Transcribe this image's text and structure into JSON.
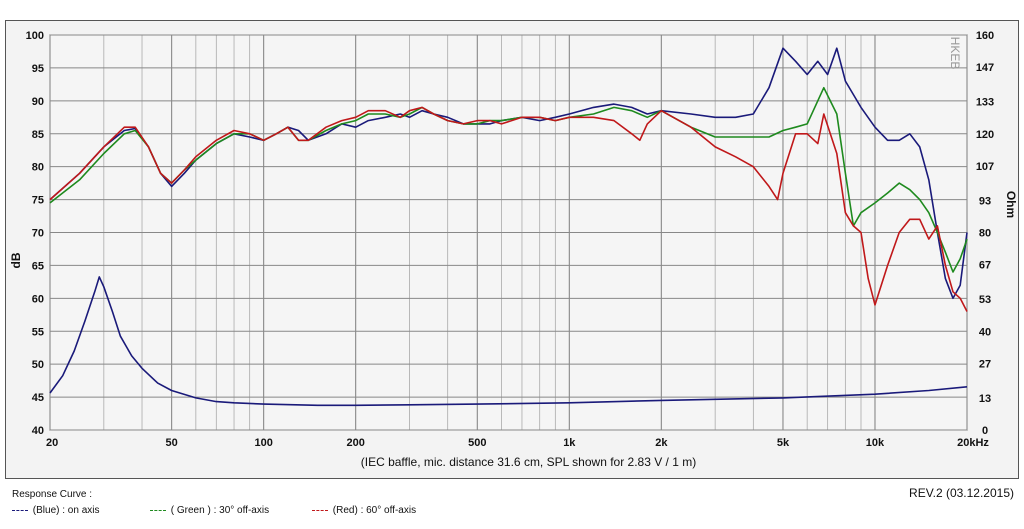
{
  "chart_data": {
    "type": "line",
    "note": "(IEC baffle, mic. distance 31.6 cm, SPL shown for 2.83 V / 1 m)",
    "ylabel": "dB",
    "ylabel_right": "Ohm",
    "x_ticks": [
      "20",
      "50",
      "100",
      "200",
      "500",
      "1k",
      "2k",
      "5k",
      "10k",
      "20kHz"
    ],
    "x_tick_values": [
      20,
      50,
      100,
      200,
      500,
      1000,
      2000,
      5000,
      10000,
      20000
    ],
    "xlim": [
      20,
      20000
    ],
    "xscale": "log",
    "ylim": [
      40,
      100
    ],
    "y_ticks": [
      "40",
      "45",
      "50",
      "55",
      "60",
      "65",
      "70",
      "75",
      "80",
      "85",
      "90",
      "95",
      "100"
    ],
    "y_tick_values": [
      40,
      45,
      50,
      55,
      60,
      65,
      70,
      75,
      80,
      85,
      90,
      95,
      100
    ],
    "y2lim": [
      0,
      160
    ],
    "y2_ticks": [
      "0",
      "13",
      "27",
      "40",
      "53",
      "67",
      "80",
      "93",
      "107",
      "120",
      "133",
      "147",
      "160"
    ],
    "y2_tick_values": [
      0,
      13,
      27,
      40,
      53,
      67,
      80,
      93,
      107,
      120,
      133,
      147,
      160
    ],
    "grid": true,
    "series": [
      {
        "name": "(Blue) : on axis",
        "color": "#1a1a7a",
        "x": [
          20,
          25,
          30,
          35,
          38,
          42,
          46,
          50,
          55,
          60,
          70,
          80,
          90,
          100,
          110,
          120,
          130,
          140,
          160,
          180,
          200,
          220,
          250,
          280,
          300,
          330,
          360,
          400,
          450,
          500,
          550,
          600,
          700,
          800,
          900,
          1000,
          1200,
          1400,
          1600,
          1800,
          2000,
          2500,
          3000,
          3500,
          4000,
          4500,
          5000,
          5500,
          6000,
          6500,
          7000,
          7500,
          8000,
          9000,
          10000,
          11000,
          12000,
          13000,
          14000,
          15000,
          16000,
          17000,
          18000,
          19000,
          20000
        ],
        "y": [
          75,
          79,
          83,
          85.5,
          85.8,
          83,
          79,
          77,
          79,
          81,
          83.5,
          85,
          84.5,
          84,
          85,
          86,
          85.5,
          84,
          85,
          86.5,
          86,
          87,
          87.5,
          88,
          87.5,
          88.5,
          88,
          87.5,
          86.5,
          86.5,
          86.5,
          87,
          87.5,
          87,
          87.5,
          88,
          89,
          89.5,
          89,
          88,
          88.5,
          88,
          87.5,
          87.5,
          88,
          92,
          98,
          96,
          94,
          96,
          94,
          98,
          93,
          89,
          86,
          84,
          84,
          85,
          83,
          78,
          70,
          63,
          60,
          62,
          70
        ]
      },
      {
        "name": "( Green ) : 30° off-axis",
        "color": "#1e8a1e",
        "x": [
          20,
          25,
          30,
          35,
          38,
          42,
          46,
          50,
          55,
          60,
          70,
          80,
          90,
          100,
          110,
          120,
          130,
          140,
          160,
          180,
          200,
          220,
          250,
          280,
          300,
          330,
          360,
          400,
          450,
          500,
          550,
          600,
          700,
          800,
          900,
          1000,
          1200,
          1400,
          1600,
          1800,
          2000,
          2500,
          3000,
          3500,
          4000,
          4500,
          5000,
          5500,
          6000,
          6500,
          6800,
          7500,
          8000,
          8500,
          9000,
          10000,
          11000,
          12000,
          13000,
          14000,
          15000,
          16000,
          17000,
          18000,
          19000,
          20000
        ],
        "y": [
          74.5,
          78,
          82,
          85,
          85.5,
          83,
          79,
          77.5,
          79.5,
          81,
          83.5,
          85,
          85,
          84,
          85,
          86,
          84,
          84,
          85.5,
          86.5,
          87,
          88,
          88,
          87.5,
          88,
          89,
          88,
          87,
          86.5,
          86.5,
          87,
          87,
          87.5,
          87.5,
          87,
          87.5,
          88,
          89,
          88.5,
          87.5,
          88.5,
          86,
          84.5,
          84.5,
          84.5,
          84.5,
          85.5,
          86,
          86.5,
          90,
          92,
          88,
          79,
          71,
          73,
          74.5,
          76,
          77.5,
          76.5,
          75,
          73,
          70,
          67,
          64,
          66,
          69
        ]
      },
      {
        "name": "(Red) : 60° off-axis",
        "color": "#c0181a",
        "x": [
          20,
          25,
          30,
          35,
          38,
          42,
          46,
          50,
          55,
          60,
          70,
          80,
          90,
          100,
          110,
          120,
          130,
          140,
          160,
          180,
          200,
          220,
          250,
          280,
          300,
          330,
          360,
          400,
          450,
          500,
          550,
          600,
          700,
          800,
          900,
          1000,
          1200,
          1400,
          1600,
          1700,
          1800,
          2000,
          2500,
          3000,
          3500,
          4000,
          4500,
          4800,
          5000,
          5500,
          6000,
          6500,
          6800,
          7500,
          8000,
          8500,
          9000,
          9500,
          10000,
          11000,
          12000,
          13000,
          14000,
          15000,
          16000,
          17000,
          18000,
          19000,
          20000
        ],
        "y": [
          75,
          79,
          83,
          86,
          86,
          83,
          79,
          77.5,
          79.5,
          81.5,
          84,
          85.5,
          85,
          84,
          85,
          86,
          84,
          84,
          86,
          87,
          87.5,
          88.5,
          88.5,
          87.5,
          88.5,
          89,
          88,
          87,
          86.5,
          87,
          87,
          86.5,
          87.5,
          87.5,
          87,
          87.5,
          87.5,
          87,
          85,
          84,
          86.5,
          88.5,
          86,
          83,
          81.5,
          80,
          77,
          75,
          79,
          85,
          85,
          83.5,
          88,
          82,
          73,
          71,
          70,
          63,
          59,
          65,
          70,
          72,
          72,
          69,
          71,
          65,
          61,
          60,
          58
        ]
      },
      {
        "name": "Impedance",
        "axis": "right",
        "color": "#1a1a7a",
        "x": [
          20,
          22,
          24,
          26,
          28,
          29,
          30,
          32,
          34,
          37,
          40,
          45,
          50,
          60,
          70,
          80,
          100,
          150,
          200,
          300,
          500,
          1000,
          2000,
          5000,
          10000,
          15000,
          20000
        ],
        "y": [
          15,
          22,
          32,
          44,
          56,
          62,
          58,
          48,
          38,
          30,
          25,
          19,
          16,
          13,
          11.5,
          11,
          10.5,
          10,
          10,
          10.2,
          10.5,
          11,
          12,
          13,
          14.5,
          16,
          17.5
        ]
      }
    ]
  },
  "legend_title": "Response Curve :",
  "legend": [
    {
      "label": "(Blue) : on axis",
      "color": "#1a1a7a"
    },
    {
      "label": "( Green ) : 30° off-axis",
      "color": "#1e8a1e"
    },
    {
      "label": "(Red) : 60° off-axis",
      "color": "#c0181a"
    }
  ],
  "revision": "REV.2 (03.12.2015)",
  "watermark": "HKEB"
}
